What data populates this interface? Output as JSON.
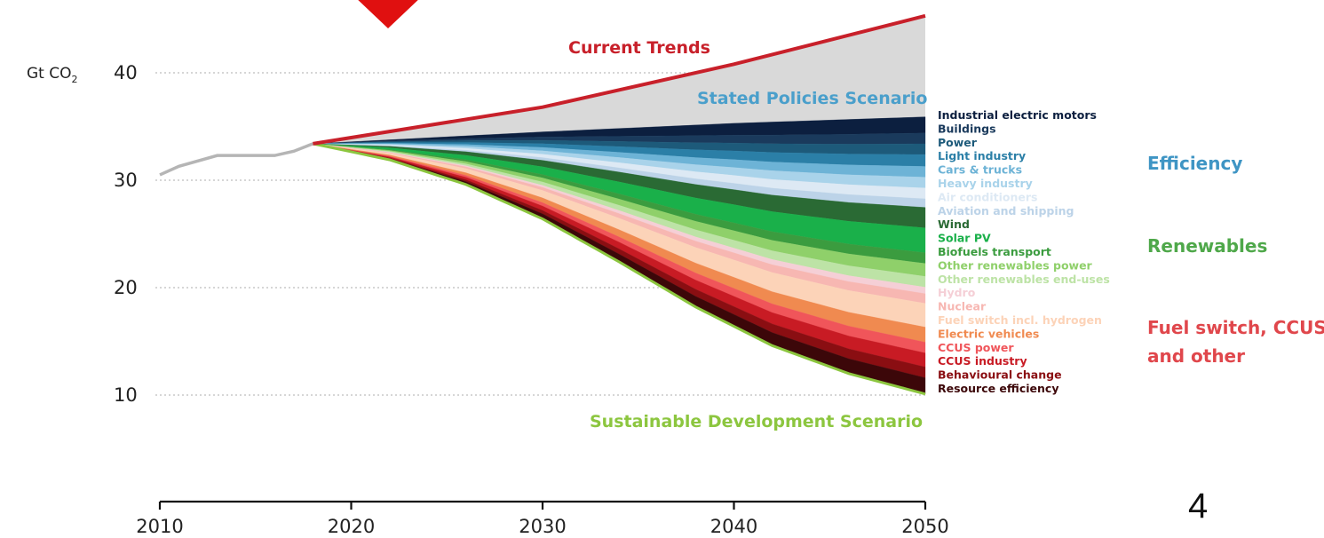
{
  "chart_data": {
    "type": "area",
    "y_axis_title": "Gt CO",
    "y_axis_title_sub": "2",
    "x_ticks": [
      2010,
      2020,
      2030,
      2040,
      2050
    ],
    "y_ticks": [
      10,
      20,
      30,
      40
    ],
    "xlim": [
      2010,
      2050
    ],
    "ylim": [
      9,
      45
    ],
    "grid": "dotted horizontal",
    "history": {
      "color": "#b5b5b5",
      "x": [
        2010,
        2011,
        2013,
        2016,
        2017,
        2018
      ],
      "y": [
        30.5,
        31.3,
        32.3,
        32.3,
        32.7,
        33.4
      ]
    },
    "current_trends": {
      "label": "Current Trends",
      "color": "#c8202a",
      "x": [
        2018,
        2030,
        2040,
        2050
      ],
      "y": [
        33.4,
        36.8,
        40.8,
        45.3
      ]
    },
    "stated_policies": {
      "label": "Stated Policies Scenario",
      "color": "#4a9fcb",
      "x": [
        2018,
        2030,
        2040,
        2050
      ],
      "y": [
        33.4,
        34.5,
        35.3,
        35.9
      ]
    },
    "sustainable_development": {
      "label": "Sustainable Development Scenario",
      "color": "#8cc63f",
      "x": [
        2018,
        2022,
        2026,
        2030,
        2034,
        2038,
        2042,
        2046,
        2050
      ],
      "y": [
        33.4,
        31.9,
        29.6,
        26.4,
        22.4,
        18.2,
        14.6,
        12.0,
        10.1
      ]
    },
    "wedges": [
      {
        "name": "Industrial electric motors",
        "color": "#0c1f3f",
        "value_2050": 1.5
      },
      {
        "name": "Buildings",
        "color": "#1a3a5c",
        "value_2050": 1.0
      },
      {
        "name": "Power",
        "color": "#1d5a7a",
        "value_2050": 1.0
      },
      {
        "name": "Light industry",
        "color": "#2b7fa7",
        "value_2050": 1.1
      },
      {
        "name": "Cars & trucks",
        "color": "#6db3d6",
        "value_2050": 1.0
      },
      {
        "name": "Heavy industry",
        "color": "#a9d3ea",
        "value_2050": 1.0
      },
      {
        "name": "Air conditioners",
        "color": "#dde9f4",
        "value_2050": 1.0
      },
      {
        "name": "Aviation and shipping",
        "color": "#bcd3e8",
        "value_2050": 0.8
      },
      {
        "name": "Wind",
        "color": "#2a6a34",
        "value_2050": 1.9
      },
      {
        "name": "Solar PV",
        "color": "#1ab04a",
        "value_2050": 2.3
      },
      {
        "name": "Biofuels transport",
        "color": "#3b9c3f",
        "value_2050": 1.0
      },
      {
        "name": "Other renewables power",
        "color": "#8fd06a",
        "value_2050": 1.2
      },
      {
        "name": "Other renewables end-uses",
        "color": "#bde3a6",
        "value_2050": 1.0
      },
      {
        "name": "Hydro",
        "color": "#f5cfd6",
        "value_2050": 0.6
      },
      {
        "name": "Nuclear",
        "color": "#f7b7b2",
        "value_2050": 0.9
      },
      {
        "name": "Fuel switch incl. hydrogen",
        "color": "#fcd3b8",
        "value_2050": 2.2
      },
      {
        "name": "Electric vehicles",
        "color": "#f08a50",
        "value_2050": 1.4
      },
      {
        "name": "CCUS power",
        "color": "#f0555a",
        "value_2050": 1.0
      },
      {
        "name": "CCUS industry",
        "color": "#c81b24",
        "value_2050": 1.3
      },
      {
        "name": "Behavioural change",
        "color": "#8a0e12",
        "value_2050": 1.0
      },
      {
        "name": "Resource efficiency",
        "color": "#3c0709",
        "value_2050": 1.5
      }
    ],
    "groups": [
      {
        "name": "Efficiency",
        "color": "#3f95c4"
      },
      {
        "name": "Renewables",
        "color": "#4fa84a"
      },
      {
        "name": "Fuel switch, CCUS",
        "line2": "and other",
        "color": "#e0474c"
      }
    ]
  },
  "marker": {
    "color": "#e01010"
  },
  "page_number": "4"
}
